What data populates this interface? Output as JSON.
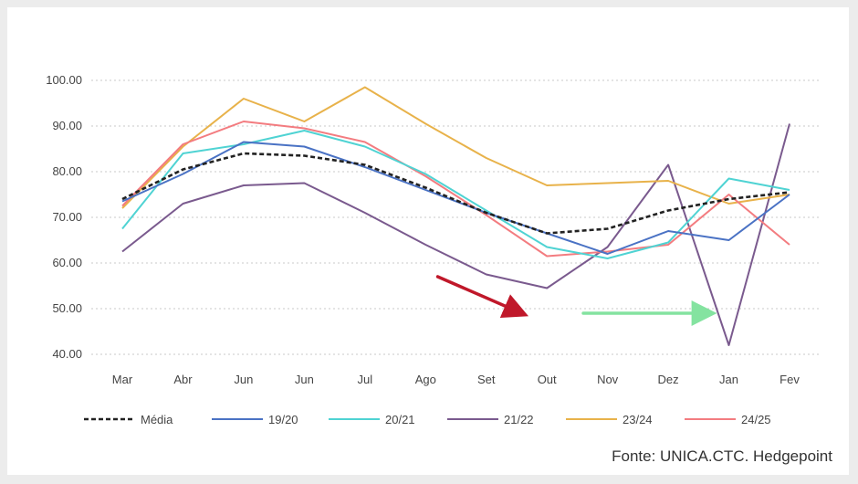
{
  "chart_data": {
    "type": "line",
    "title": "",
    "xlabel": "",
    "ylabel": "",
    "ylim": [
      40,
      100
    ],
    "yticks": [
      "100.00",
      "90.00",
      "80.00",
      "70.00",
      "60.00",
      "50.00",
      "40.00"
    ],
    "ytick_values": [
      100,
      90,
      80,
      70,
      60,
      50,
      40
    ],
    "categories": [
      "Mar",
      "Abr",
      "Jun",
      "Jun",
      "Jul",
      "Ago",
      "Set",
      "Out",
      "Nov",
      "Dez",
      "Jan",
      "Fev"
    ],
    "grid": "horizontal dotted",
    "legend_position": "bottom",
    "series": [
      {
        "name": "Média",
        "color": "#222222",
        "dashed": true,
        "values": [
          74.0,
          80.5,
          84.0,
          83.5,
          81.5,
          76.5,
          71.0,
          66.5,
          67.5,
          71.5,
          74.0,
          75.5
        ]
      },
      {
        "name": "19/20",
        "color": "#4a72c4",
        "dashed": false,
        "values": [
          73.5,
          79.5,
          86.5,
          85.5,
          81.0,
          76.0,
          71.0,
          66.5,
          62.0,
          67.0,
          65.0,
          75.0
        ]
      },
      {
        "name": "20/21",
        "color": "#4fd3d3",
        "dashed": false,
        "values": [
          67.5,
          84.0,
          86.0,
          89.0,
          85.5,
          79.5,
          71.5,
          63.5,
          61.0,
          64.5,
          78.5,
          76.0
        ]
      },
      {
        "name": "21/22",
        "color": "#7a5a8e",
        "dashed": false,
        "values": [
          62.5,
          73.0,
          77.0,
          77.5,
          71.0,
          64.0,
          57.5,
          54.5,
          63.5,
          81.5,
          42.0,
          90.5
        ]
      },
      {
        "name": "23/24",
        "color": "#e8b24a",
        "dashed": false,
        "values": [
          72.0,
          85.5,
          96.0,
          91.0,
          98.5,
          90.5,
          83.0,
          77.0,
          77.5,
          78.0,
          73.0,
          75.0
        ]
      },
      {
        "name": "24/25",
        "color": "#f37c80",
        "dashed": false,
        "values": [
          72.5,
          86.0,
          91.0,
          89.5,
          86.5,
          79.0,
          70.5,
          61.5,
          62.5,
          64.0,
          75.0,
          64.0
        ]
      }
    ],
    "annotations": [
      {
        "name": "red-arrow",
        "color": "#c0182a",
        "from": [
          5.2,
          57
        ],
        "to": [
          6.6,
          48.9
        ]
      },
      {
        "name": "green-arrow",
        "color": "#84e3a0",
        "from": [
          7.6,
          49
        ],
        "to": [
          9.7,
          49
        ]
      }
    ]
  },
  "source": "Fonte: UNICA.CTC. Hedgepoint"
}
